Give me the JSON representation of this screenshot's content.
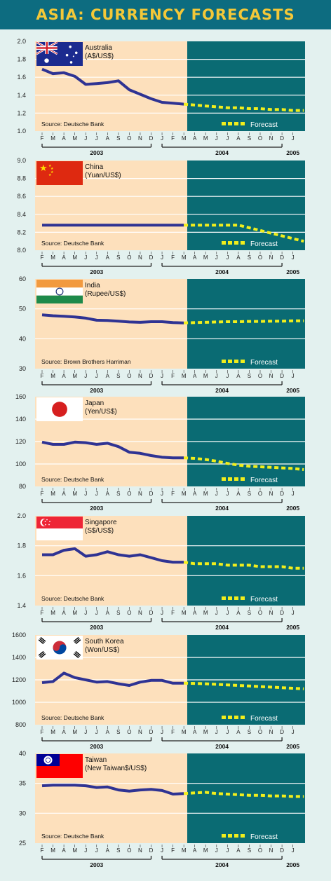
{
  "title": "ASIA: CURRENCY FORECASTS",
  "colors": {
    "header_bg": "#0d6c80",
    "title": "#f4c838",
    "history_bg": "#fde0bc",
    "forecast_bg": "#0a6b73",
    "history_line": "#2f3393",
    "forecast_line": "#f1ee1c",
    "grid": "#ffffff"
  },
  "months": [
    "F",
    "M",
    "A",
    "M",
    "J",
    "J",
    "A",
    "S",
    "O",
    "N",
    "D",
    "J",
    "F",
    "M",
    "A",
    "M",
    "J",
    "J",
    "A",
    "S",
    "O",
    "N",
    "D",
    "J"
  ],
  "years": [
    "2003",
    "2004",
    "2005"
  ],
  "forecast_label": "Forecast",
  "chart_data": [
    {
      "type": "line",
      "name": "Australia",
      "unit": "(A$/US$)",
      "source": "Source: Deutsche Bank",
      "flag": "australia-flag",
      "ylim": [
        1.0,
        2.0
      ],
      "yticks": [
        "1.0",
        "1.2",
        "1.4",
        "1.6",
        "1.8",
        "2.0"
      ],
      "history": [
        1.69,
        1.64,
        1.65,
        1.61,
        1.52,
        1.53,
        1.54,
        1.56,
        1.46,
        1.41,
        1.36,
        1.32,
        1.31,
        1.3
      ],
      "forecast": [
        1.3,
        1.29,
        1.28,
        1.27,
        1.26,
        1.26,
        1.25,
        1.25,
        1.24,
        1.24,
        1.23,
        1.23
      ]
    },
    {
      "type": "line",
      "name": "China",
      "unit": "(Yuan/US$)",
      "source": "Source: Deutsche Bank",
      "flag": "china-flag",
      "ylim": [
        8.0,
        9.0
      ],
      "yticks": [
        "8.0",
        "8.2",
        "8.4",
        "8.6",
        "8.8",
        "9.0"
      ],
      "history": [
        8.28,
        8.28,
        8.28,
        8.28,
        8.28,
        8.28,
        8.28,
        8.28,
        8.28,
        8.28,
        8.28,
        8.28,
        8.28,
        8.28
      ],
      "forecast": [
        8.28,
        8.28,
        8.28,
        8.28,
        8.28,
        8.28,
        8.25,
        8.22,
        8.19,
        8.16,
        8.13,
        8.1
      ]
    },
    {
      "type": "line",
      "name": "India",
      "unit": "(Rupee/US$)",
      "source": "Source: Brown Brothers Harriman",
      "flag": "india-flag",
      "ylim": [
        30,
        60
      ],
      "yticks": [
        "30",
        "40",
        "50",
        "60"
      ],
      "history": [
        48.0,
        47.7,
        47.5,
        47.3,
        46.9,
        46.2,
        46.1,
        45.9,
        45.6,
        45.5,
        45.7,
        45.7,
        45.4,
        45.3
      ],
      "forecast": [
        45.3,
        45.4,
        45.5,
        45.6,
        45.7,
        45.7,
        45.8,
        45.8,
        45.9,
        45.9,
        46.0,
        46.0
      ]
    },
    {
      "type": "line",
      "name": "Japan",
      "unit": "(Yen/US$)",
      "source": "Source: Deutsche Bank",
      "flag": "japan-flag",
      "ylim": [
        80,
        160
      ],
      "yticks": [
        "80",
        "100",
        "120",
        "140",
        "160"
      ],
      "history": [
        119.5,
        117.5,
        117.5,
        119.5,
        119,
        117.5,
        118.5,
        115.5,
        110.5,
        109.5,
        107.5,
        106,
        105.5,
        105.5
      ],
      "forecast": [
        105.5,
        105,
        104,
        102.5,
        100.5,
        99,
        98,
        97.5,
        97,
        96.5,
        96,
        95
      ]
    },
    {
      "type": "line",
      "name": "Singapore",
      "unit": "(S$/US$)",
      "source": "Source: Deutsche Bank",
      "flag": "singapore-flag",
      "ylim": [
        1.4,
        2.0
      ],
      "yticks": [
        "1.4",
        "1.6",
        "1.8",
        "2.0"
      ],
      "history": [
        1.74,
        1.74,
        1.77,
        1.78,
        1.73,
        1.74,
        1.76,
        1.74,
        1.73,
        1.74,
        1.72,
        1.7,
        1.69,
        1.69
      ],
      "forecast": [
        1.69,
        1.68,
        1.68,
        1.68,
        1.67,
        1.67,
        1.67,
        1.66,
        1.66,
        1.66,
        1.65,
        1.65
      ]
    },
    {
      "type": "line",
      "name": "South Korea",
      "unit": "(Won/US$)",
      "source": "Source: Deutsche Bank",
      "flag": "south-korea-flag",
      "ylim": [
        800,
        1600
      ],
      "yticks": [
        "800",
        "1000",
        "1200",
        "1400",
        "1600"
      ],
      "history": [
        1175,
        1185,
        1260,
        1220,
        1200,
        1180,
        1185,
        1165,
        1150,
        1180,
        1195,
        1195,
        1170,
        1170
      ],
      "forecast": [
        1170,
        1168,
        1165,
        1160,
        1155,
        1150,
        1145,
        1140,
        1135,
        1130,
        1125,
        1120
      ]
    },
    {
      "type": "line",
      "name": "Taiwan",
      "unit": "(New Taiwan$/US$)",
      "source": "Source: Deutsche Bank",
      "flag": "taiwan-flag",
      "ylim": [
        25,
        40
      ],
      "yticks": [
        "25",
        "30",
        "35",
        "40"
      ],
      "history": [
        34.6,
        34.7,
        34.7,
        34.7,
        34.6,
        34.3,
        34.4,
        33.9,
        33.7,
        33.9,
        34.0,
        33.8,
        33.2,
        33.3
      ],
      "forecast": [
        33.3,
        33.4,
        33.5,
        33.3,
        33.2,
        33.1,
        33.0,
        33.0,
        32.9,
        32.9,
        32.8,
        32.8
      ]
    }
  ]
}
